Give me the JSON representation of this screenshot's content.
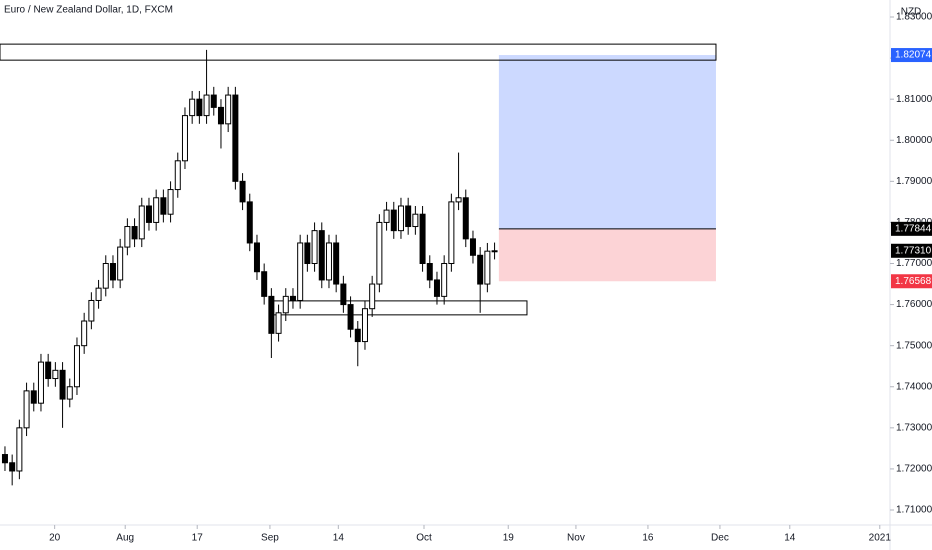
{
  "chart_data": {
    "type": "candlestick",
    "title": "Euro / New Zealand Dollar, 1D, FXCM",
    "y_axis_label": "NZD",
    "series": [
      {
        "color_up": "#ffffff",
        "color_down": "#000000",
        "open": [
          1.7235,
          1.7215,
          1.7195,
          1.73,
          1.739,
          1.736,
          1.746,
          1.742,
          1.744,
          1.737,
          1.74,
          1.75,
          1.756,
          1.761,
          1.764,
          1.77,
          1.766,
          1.774,
          1.779,
          1.776,
          1.784,
          1.78,
          1.786,
          1.782,
          1.788,
          1.795,
          1.806,
          1.81,
          1.806,
          1.811,
          1.808,
          1.804,
          1.811,
          1.79,
          1.785,
          1.775,
          1.768,
          1.762,
          1.753,
          1.758,
          1.762,
          1.761,
          1.775,
          1.77,
          1.778,
          1.766,
          1.775,
          1.765,
          1.76,
          1.754,
          1.751,
          1.759,
          1.765,
          1.78,
          1.783,
          1.778,
          1.784,
          1.779,
          1.782,
          1.77,
          1.766,
          1.762,
          1.77,
          1.785,
          1.786,
          1.776,
          1.772,
          1.765,
          1.773
        ],
        "high": [
          1.7255,
          1.7235,
          1.732,
          1.741,
          1.741,
          1.748,
          1.748,
          1.746,
          1.746,
          1.742,
          1.752,
          1.758,
          1.763,
          1.766,
          1.772,
          1.772,
          1.776,
          1.781,
          1.781,
          1.786,
          1.786,
          1.788,
          1.788,
          1.79,
          1.797,
          1.808,
          1.812,
          1.812,
          1.822,
          1.813,
          1.81,
          1.813,
          1.813,
          1.792,
          1.787,
          1.777,
          1.77,
          1.764,
          1.76,
          1.764,
          1.764,
          1.777,
          1.777,
          1.78,
          1.78,
          1.777,
          1.777,
          1.767,
          1.762,
          1.756,
          1.761,
          1.767,
          1.782,
          1.785,
          1.785,
          1.786,
          1.786,
          1.784,
          1.784,
          1.772,
          1.768,
          1.772,
          1.787,
          1.797,
          1.788,
          1.778,
          1.774,
          1.775,
          1.7751
        ],
        "low": [
          1.7195,
          1.716,
          1.7175,
          1.728,
          1.734,
          1.734,
          1.74,
          1.74,
          1.73,
          1.735,
          1.738,
          1.748,
          1.754,
          1.759,
          1.762,
          1.764,
          1.764,
          1.772,
          1.774,
          1.774,
          1.778,
          1.778,
          1.78,
          1.78,
          1.786,
          1.793,
          1.804,
          1.804,
          1.804,
          1.806,
          1.798,
          1.802,
          1.788,
          1.783,
          1.773,
          1.766,
          1.76,
          1.747,
          1.751,
          1.756,
          1.759,
          1.759,
          1.768,
          1.768,
          1.764,
          1.764,
          1.763,
          1.758,
          1.752,
          1.745,
          1.749,
          1.757,
          1.763,
          1.778,
          1.776,
          1.776,
          1.777,
          1.777,
          1.768,
          1.764,
          1.76,
          1.76,
          1.768,
          1.783,
          1.774,
          1.77,
          1.758,
          1.763,
          1.771
        ],
        "close": [
          1.7215,
          1.7195,
          1.73,
          1.739,
          1.736,
          1.746,
          1.742,
          1.744,
          1.737,
          1.74,
          1.75,
          1.756,
          1.761,
          1.764,
          1.77,
          1.766,
          1.774,
          1.779,
          1.776,
          1.784,
          1.78,
          1.786,
          1.782,
          1.788,
          1.795,
          1.806,
          1.81,
          1.806,
          1.811,
          1.808,
          1.804,
          1.811,
          1.79,
          1.785,
          1.775,
          1.768,
          1.762,
          1.753,
          1.758,
          1.762,
          1.761,
          1.775,
          1.77,
          1.778,
          1.766,
          1.775,
          1.765,
          1.76,
          1.754,
          1.751,
          1.759,
          1.765,
          1.78,
          1.783,
          1.778,
          1.784,
          1.779,
          1.782,
          1.77,
          1.766,
          1.762,
          1.77,
          1.785,
          1.786,
          1.776,
          1.772,
          1.765,
          1.773,
          1.7731
        ]
      }
    ],
    "xlim": [
      -0.69,
      122.92
    ],
    "xticks": [
      {
        "value": 6.9,
        "label": "20"
      },
      {
        "value": 16.7,
        "label": "Aug"
      },
      {
        "value": 26.7,
        "label": "17"
      },
      {
        "value": 36.8,
        "label": "Sep"
      },
      {
        "value": 46.3,
        "label": "14"
      },
      {
        "value": 58.2,
        "label": "Oct"
      },
      {
        "value": 69.9,
        "label": "19"
      },
      {
        "value": 79.3,
        "label": "Nov"
      },
      {
        "value": 89.3,
        "label": "16"
      },
      {
        "value": 99.3,
        "label": "Dec"
      },
      {
        "value": 109.0,
        "label": "14"
      },
      {
        "value": 121.5,
        "label": "2021"
      }
    ],
    "ylim": [
      1.70635,
      1.83414
    ],
    "yticks": [
      {
        "value": 1.71,
        "label": "1.71000"
      },
      {
        "value": 1.72,
        "label": "1.72000"
      },
      {
        "value": 1.73,
        "label": "1.73000"
      },
      {
        "value": 1.74,
        "label": "1.74000"
      },
      {
        "value": 1.75,
        "label": "1.75000"
      },
      {
        "value": 1.76,
        "label": "1.76000"
      },
      {
        "value": 1.77,
        "label": "1.77000"
      },
      {
        "value": 1.78,
        "label": "1.78000"
      },
      {
        "value": 1.79,
        "label": "1.79000"
      },
      {
        "value": 1.8,
        "label": "1.80000"
      },
      {
        "value": 1.81,
        "label": "1.81000"
      },
      {
        "value": 1.82,
        "label": "1.82000"
      },
      {
        "value": 1.83,
        "label": "1.83000"
      }
    ],
    "grid": false,
    "zones": [
      {
        "top": 1.8234,
        "bottom": 1.8195,
        "from": -0.69,
        "to": 98.75
      },
      {
        "top": 1.7609,
        "bottom": 1.7575,
        "from": 36.8,
        "to": 72.5
      }
    ],
    "position": {
      "from": 68.6,
      "to": 98.75,
      "target": 1.82074,
      "entry": 1.77844,
      "stop": 1.76568,
      "target_color": "#2962ff",
      "stop_color": "#f23645"
    },
    "last_price": {
      "value": 1.7731,
      "label": "1.77310"
    }
  }
}
